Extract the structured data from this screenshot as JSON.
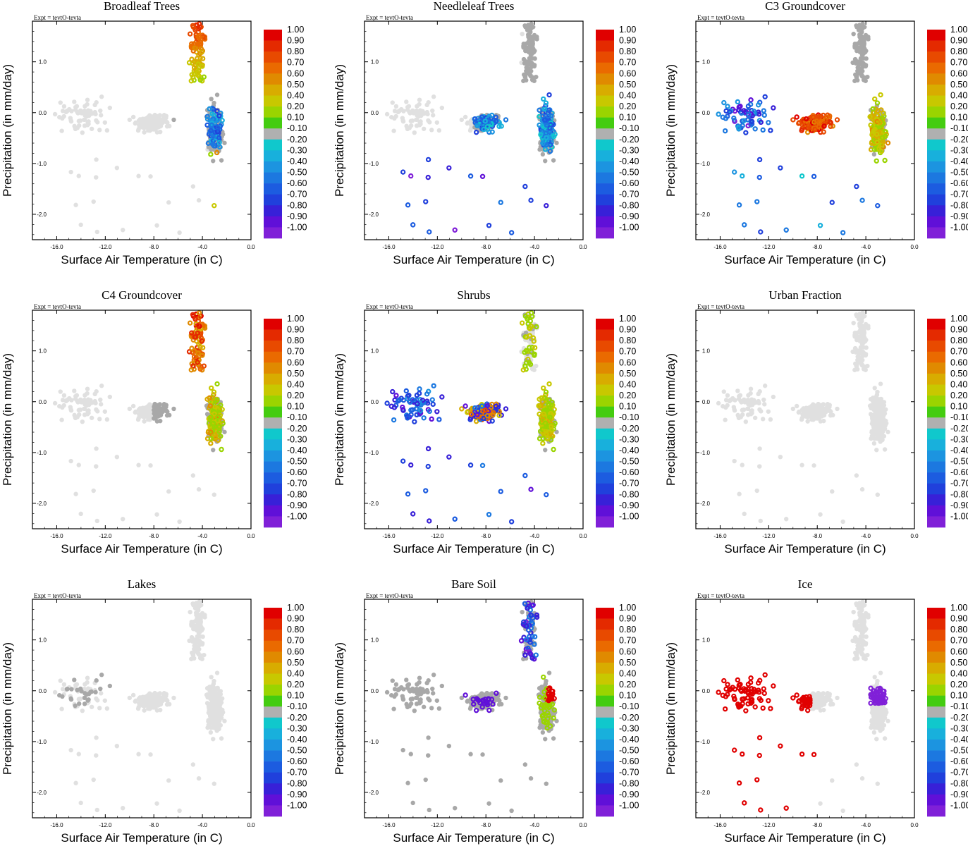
{
  "chart_data": {
    "type": "scatter",
    "layout": "3x3 grid of scatter panels, each with a vertical colorbar on the right",
    "xlabel": "Surface Air Temperature (in C)",
    "ylabel": "Precipitation (in mm/day)",
    "xlim": [
      -18,
      0
    ],
    "ylim": [
      -2.5,
      1.8
    ],
    "xticks": [
      "-16.0",
      "-12.0",
      "-8.0",
      "-4.0",
      "0.0"
    ],
    "yticks": [
      "1.0",
      "0.0",
      "-1.0",
      "-2.0"
    ],
    "expt_label": "Expt = tevtO-tevta",
    "colorbar": {
      "labels": [
        "1.00",
        "0.90",
        "0.80",
        "0.70",
        "0.60",
        "0.50",
        "0.40",
        "0.20",
        "0.10",
        "-0.10",
        "-0.20",
        "-0.30",
        "-0.40",
        "-0.50",
        "-0.60",
        "-0.70",
        "-0.80",
        "-0.90",
        "-1.00"
      ],
      "colors": [
        "#e00000",
        "#e42a00",
        "#e84a00",
        "#ea6a00",
        "#e08a00",
        "#d8ac00",
        "#c8c800",
        "#9ad400",
        "#44cc10",
        "#b0b0b0",
        "#10c8cc",
        "#18b0dc",
        "#1c94e0",
        "#1c78e0",
        "#1c5ce0",
        "#2040dc",
        "#3820d8",
        "#6010d8",
        "#8020d8"
      ]
    },
    "colors": {
      "background_points": "#e0e0e0",
      "gray_points": "#a8a8a8"
    },
    "panels": [
      {
        "title": "Broadleaf Trees"
      },
      {
        "title": "Needleleaf Trees"
      },
      {
        "title": "C3 Groundcover"
      },
      {
        "title": "C4 Groundcover"
      },
      {
        "title": "Shrubs"
      },
      {
        "title": "Urban Fraction"
      },
      {
        "title": "Lakes"
      },
      {
        "title": "Bare Soil"
      },
      {
        "title": "Ice"
      }
    ]
  }
}
